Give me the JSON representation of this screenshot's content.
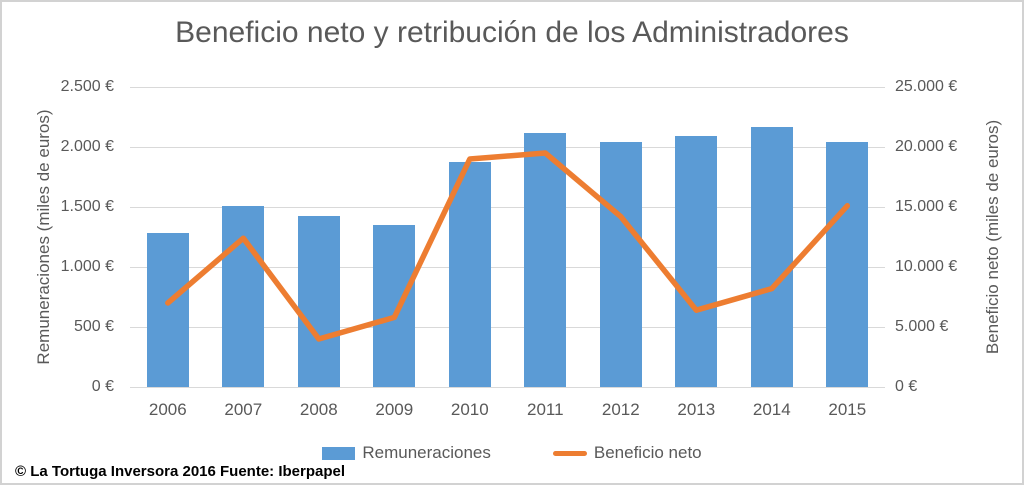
{
  "chart_data": {
    "type": "combo",
    "title": "Beneficio neto y retribución de los Administradores",
    "categories": [
      "2006",
      "2007",
      "2008",
      "2009",
      "2010",
      "2011",
      "2012",
      "2013",
      "2014",
      "2015"
    ],
    "series": [
      {
        "name": "Remuneraciones",
        "type": "bar",
        "axis": "left",
        "color": "#5B9BD5",
        "values": [
          1280,
          1505,
          1425,
          1350,
          1875,
          2115,
          2045,
          2090,
          2170,
          2040
        ]
      },
      {
        "name": "Beneficio neto",
        "type": "line",
        "axis": "right",
        "color": "#ED7D31",
        "values": [
          7000,
          12400,
          4000,
          5800,
          19000,
          19500,
          14200,
          6400,
          8200,
          15100
        ]
      }
    ],
    "left_axis": {
      "label": "Remuneraciones (miles de euros)",
      "min": 0,
      "max": 2500,
      "step": 500,
      "ticks": [
        "0 €",
        "500 €",
        "1.000 €",
        "1.500 €",
        "2.000 €",
        "2.500 €"
      ]
    },
    "right_axis": {
      "label": "Beneficio neto (miles de euros)",
      "min": 0,
      "max": 25000,
      "step": 5000,
      "ticks": [
        "0 €",
        "5.000 €",
        "10.000 €",
        "15.000 €",
        "20.000 €",
        "25.000 €"
      ]
    },
    "grid": true,
    "legend_position": "bottom"
  },
  "footer": {
    "source": "© La Tortuga Inversora 2016 Fuente: Iberpapel"
  },
  "colors": {
    "bar": "#5B9BD5",
    "line": "#ED7D31",
    "grid": "#D9D9D9",
    "text": "#595959",
    "background": "#FFFFFF"
  }
}
